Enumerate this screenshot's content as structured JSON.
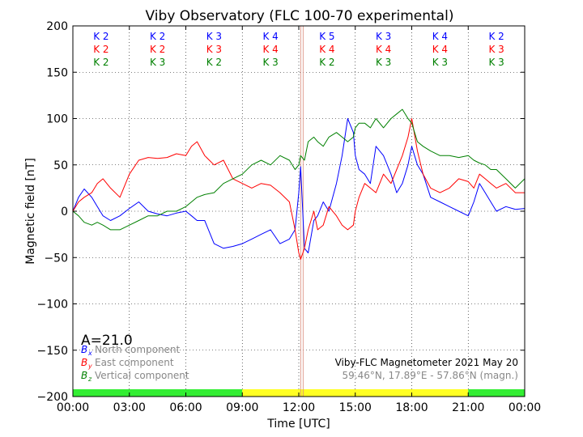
{
  "chart_data": {
    "type": "line",
    "title": "Viby Observatory (FLC 100-70 experimental)",
    "xlabel": "Time [UTC]",
    "ylabel": "Magnetic field [nT]",
    "xlim": [
      0,
      24
    ],
    "ylim": [
      -200,
      200
    ],
    "x_tick_labels": [
      "00:00",
      "03:00",
      "06:00",
      "09:00",
      "12:00",
      "15:00",
      "18:00",
      "21:00",
      "00:00"
    ],
    "y_tick_labels": [
      "200",
      "150",
      "100",
      "50",
      "0",
      "−50",
      "−100",
      "−150",
      "−200"
    ],
    "grid": true,
    "colors": {
      "north": "#0000ff",
      "east": "#ff0000",
      "vertical": "#008000",
      "day_bar": "#33ee33",
      "night_bar": "#ffff22",
      "marker": "#d98a7a"
    },
    "marker_hour": 12.1,
    "k_index_rows": {
      "north": [
        "K 2",
        "K 2",
        "K 3",
        "K 4",
        "K 5",
        "K 3",
        "K 4",
        "K 2"
      ],
      "east": [
        "K 2",
        "K 2",
        "K 3",
        "K 4",
        "K 4",
        "K 4",
        "K 4",
        "K 3"
      ],
      "vertical": [
        "K 2",
        "K 3",
        "K 2",
        "K 3",
        "K 2",
        "K 3",
        "K 3",
        "K 3"
      ]
    },
    "a_index_text": "A=21.0",
    "legend": {
      "placement": "lower-left",
      "entries": [
        {
          "symbol_base": "B",
          "symbol_sub": "x",
          "label": "North component"
        },
        {
          "symbol_base": "B",
          "symbol_sub": "y",
          "label": "East component"
        },
        {
          "symbol_base": "B",
          "symbol_sub": "z",
          "label": "Vertical component"
        }
      ]
    },
    "info_line1": "Viby-FLC Magnetometer 2021 May 20",
    "info_line2": "59.46°N, 17.89°E - 57.86°N (magn.)",
    "time_bar_segments": [
      {
        "from": 0,
        "to": 9,
        "kind": "day"
      },
      {
        "from": 9,
        "to": 21,
        "kind": "night"
      },
      {
        "from": 21,
        "to": 24,
        "kind": "day"
      }
    ],
    "series": [
      {
        "name": "North component",
        "key": "north",
        "x": [
          0,
          0.3,
          0.6,
          1.0,
          1.3,
          1.6,
          2.0,
          2.5,
          3.0,
          3.5,
          4.0,
          4.5,
          5.0,
          5.5,
          6.0,
          6.3,
          6.6,
          7.0,
          7.5,
          8.0,
          8.5,
          9.0,
          9.5,
          10.0,
          10.5,
          11.0,
          11.5,
          11.8,
          12.0,
          12.1,
          12.3,
          12.5,
          12.8,
          13.0,
          13.3,
          13.6,
          14.0,
          14.3,
          14.6,
          14.9,
          15.0,
          15.2,
          15.5,
          15.8,
          16.1,
          16.5,
          16.9,
          17.2,
          17.5,
          17.8,
          18.0,
          18.3,
          18.6,
          19.0,
          19.5,
          20.0,
          20.5,
          21.0,
          21.3,
          21.6,
          21.9,
          22.2,
          22.5,
          23.0,
          23.5,
          24.0
        ],
        "y": [
          0,
          15,
          24,
          15,
          5,
          -5,
          -10,
          -5,
          3,
          10,
          0,
          -3,
          -5,
          -2,
          0,
          -5,
          -10,
          -10,
          -35,
          -40,
          -38,
          -35,
          -30,
          -25,
          -20,
          -35,
          -30,
          -20,
          20,
          48,
          -40,
          -45,
          -10,
          -5,
          10,
          0,
          30,
          60,
          100,
          85,
          60,
          45,
          40,
          30,
          70,
          60,
          40,
          20,
          30,
          50,
          70,
          50,
          40,
          15,
          10,
          5,
          0,
          -5,
          10,
          30,
          20,
          10,
          0,
          5,
          2,
          3
        ]
      },
      {
        "name": "East component",
        "key": "east",
        "x": [
          0,
          0.3,
          0.6,
          1.0,
          1.3,
          1.6,
          2.0,
          2.5,
          3.0,
          3.5,
          4.0,
          4.5,
          5.0,
          5.5,
          6.0,
          6.3,
          6.6,
          7.0,
          7.5,
          8.0,
          8.5,
          9.0,
          9.5,
          10.0,
          10.5,
          11.0,
          11.5,
          11.8,
          12.0,
          12.1,
          12.3,
          12.5,
          12.8,
          13.0,
          13.3,
          13.6,
          14.0,
          14.3,
          14.6,
          14.9,
          15.0,
          15.2,
          15.5,
          15.8,
          16.1,
          16.5,
          16.9,
          17.2,
          17.5,
          17.8,
          18.0,
          18.3,
          18.6,
          19.0,
          19.5,
          20.0,
          20.5,
          21.0,
          21.3,
          21.6,
          21.9,
          22.2,
          22.5,
          23.0,
          23.5,
          24.0
        ],
        "y": [
          0,
          10,
          15,
          20,
          30,
          35,
          25,
          15,
          40,
          55,
          58,
          57,
          58,
          62,
          60,
          70,
          75,
          60,
          50,
          55,
          35,
          30,
          25,
          30,
          28,
          20,
          10,
          -20,
          -45,
          -52,
          -40,
          -20,
          0,
          -20,
          -15,
          5,
          -5,
          -15,
          -20,
          -15,
          0,
          15,
          30,
          25,
          20,
          40,
          30,
          45,
          60,
          80,
          100,
          65,
          40,
          25,
          20,
          25,
          35,
          32,
          25,
          40,
          35,
          30,
          25,
          30,
          20,
          20
        ]
      },
      {
        "name": "Vertical component",
        "key": "vertical",
        "x": [
          0,
          0.3,
          0.6,
          1.0,
          1.3,
          1.6,
          2.0,
          2.5,
          3.0,
          3.5,
          4.0,
          4.5,
          5.0,
          5.5,
          6.0,
          6.3,
          6.6,
          7.0,
          7.5,
          8.0,
          8.5,
          9.0,
          9.5,
          10.0,
          10.5,
          11.0,
          11.5,
          11.8,
          12.0,
          12.1,
          12.3,
          12.5,
          12.8,
          13.0,
          13.3,
          13.6,
          14.0,
          14.3,
          14.6,
          14.9,
          15.0,
          15.2,
          15.5,
          15.8,
          16.1,
          16.5,
          16.9,
          17.2,
          17.5,
          17.8,
          18.0,
          18.3,
          18.6,
          19.0,
          19.5,
          20.0,
          20.5,
          21.0,
          21.3,
          21.6,
          21.9,
          22.2,
          22.5,
          23.0,
          23.5,
          24.0
        ],
        "y": [
          0,
          -5,
          -12,
          -15,
          -12,
          -15,
          -20,
          -20,
          -15,
          -10,
          -5,
          -5,
          0,
          0,
          5,
          10,
          15,
          18,
          20,
          30,
          35,
          40,
          50,
          55,
          50,
          60,
          55,
          45,
          50,
          60,
          55,
          75,
          80,
          75,
          70,
          80,
          85,
          80,
          75,
          80,
          90,
          95,
          95,
          90,
          100,
          90,
          100,
          105,
          110,
          100,
          95,
          75,
          70,
          65,
          60,
          60,
          58,
          60,
          55,
          52,
          50,
          45,
          45,
          35,
          25,
          35
        ]
      }
    ]
  }
}
